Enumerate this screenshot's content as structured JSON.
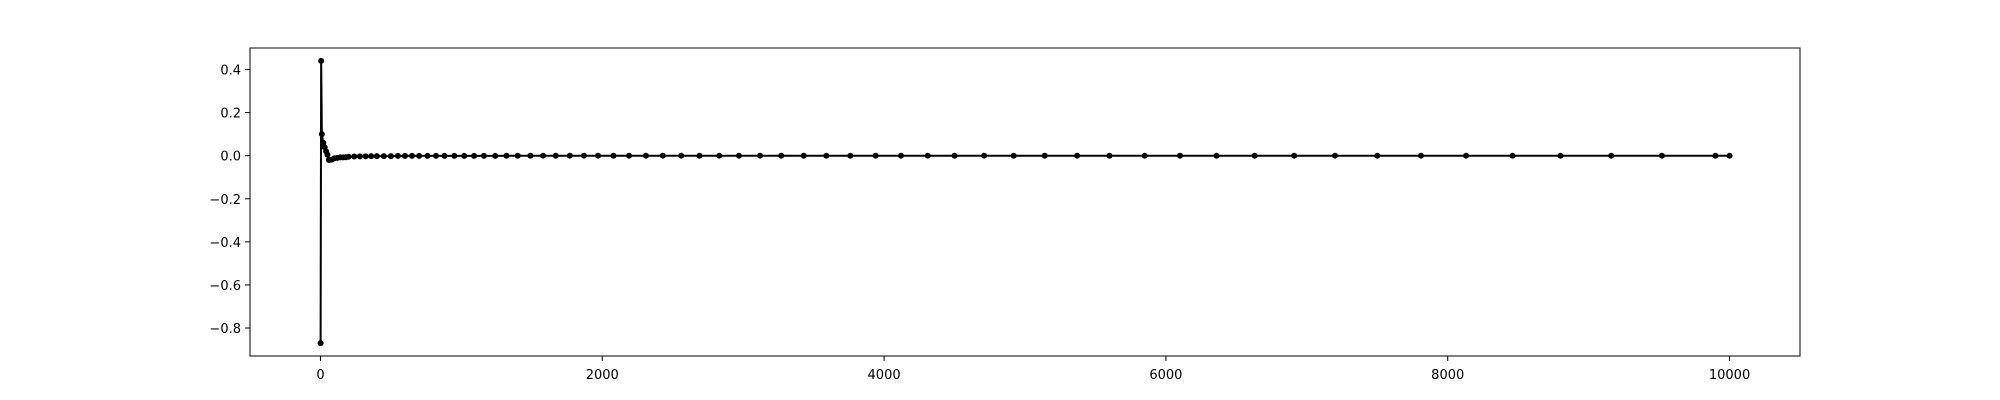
{
  "chart_data": {
    "type": "line",
    "title": "",
    "xlabel": "",
    "ylabel": "",
    "xlim": [
      -500,
      10500
    ],
    "ylim": [
      -0.93,
      0.5
    ],
    "grid": false,
    "legend": "none",
    "x_ticks": [
      {
        "value": 0,
        "label": "0"
      },
      {
        "value": 2000,
        "label": "2000"
      },
      {
        "value": 4000,
        "label": "4000"
      },
      {
        "value": 6000,
        "label": "6000"
      },
      {
        "value": 8000,
        "label": "8000"
      },
      {
        "value": 10000,
        "label": "10000"
      }
    ],
    "y_ticks": [
      {
        "value": 0.4,
        "label": "0.4"
      },
      {
        "value": 0.2,
        "label": "0.2"
      },
      {
        "value": 0.0,
        "label": "0.0"
      },
      {
        "value": -0.2,
        "label": "−0.2"
      },
      {
        "value": -0.4,
        "label": "−0.4"
      },
      {
        "value": -0.6,
        "label": "−0.6"
      },
      {
        "value": -0.8,
        "label": "−0.8"
      }
    ],
    "series": [
      {
        "color": "#000000",
        "marker": "circle",
        "x": [
          1,
          5,
          10,
          20,
          30,
          40,
          50,
          60,
          80,
          100,
          120,
          140,
          160,
          180,
          200,
          240,
          280,
          320,
          360,
          400,
          450,
          500,
          550,
          600,
          650,
          700,
          760,
          820,
          880,
          950,
          1020,
          1090,
          1160,
          1240,
          1320,
          1400,
          1490,
          1580,
          1670,
          1770,
          1870,
          1970,
          2080,
          2190,
          2310,
          2430,
          2560,
          2690,
          2830,
          2970,
          3120,
          3270,
          3430,
          3590,
          3760,
          3940,
          4120,
          4310,
          4500,
          4710,
          4920,
          5140,
          5370,
          5600,
          5850,
          6100,
          6360,
          6630,
          6910,
          7200,
          7500,
          7810,
          8130,
          8460,
          8800,
          9160,
          9520,
          9900,
          10000
        ],
        "y": [
          -0.87,
          0.44,
          0.1,
          0.06,
          0.04,
          0.02,
          0.005,
          -0.02,
          -0.018,
          -0.012,
          -0.01,
          -0.008,
          -0.008,
          -0.007,
          -0.005,
          -0.004,
          -0.003,
          -0.003,
          -0.002,
          -0.002,
          -0.002,
          -0.002,
          -0.001,
          -0.001,
          -0.001,
          -0.001,
          -0.001,
          -0.001,
          -0.001,
          -0.001,
          -0.001,
          -0.001,
          -0.001,
          -0.001,
          0,
          0,
          0,
          0,
          0,
          0,
          0,
          0,
          0,
          0,
          0,
          0,
          0,
          0,
          0,
          0,
          0,
          0,
          0,
          0,
          0,
          0,
          0,
          0,
          0,
          0,
          0,
          0,
          0,
          0,
          0,
          0,
          0,
          0,
          0,
          0,
          0,
          0,
          0,
          0,
          0,
          0,
          0,
          0,
          0
        ]
      }
    ]
  }
}
